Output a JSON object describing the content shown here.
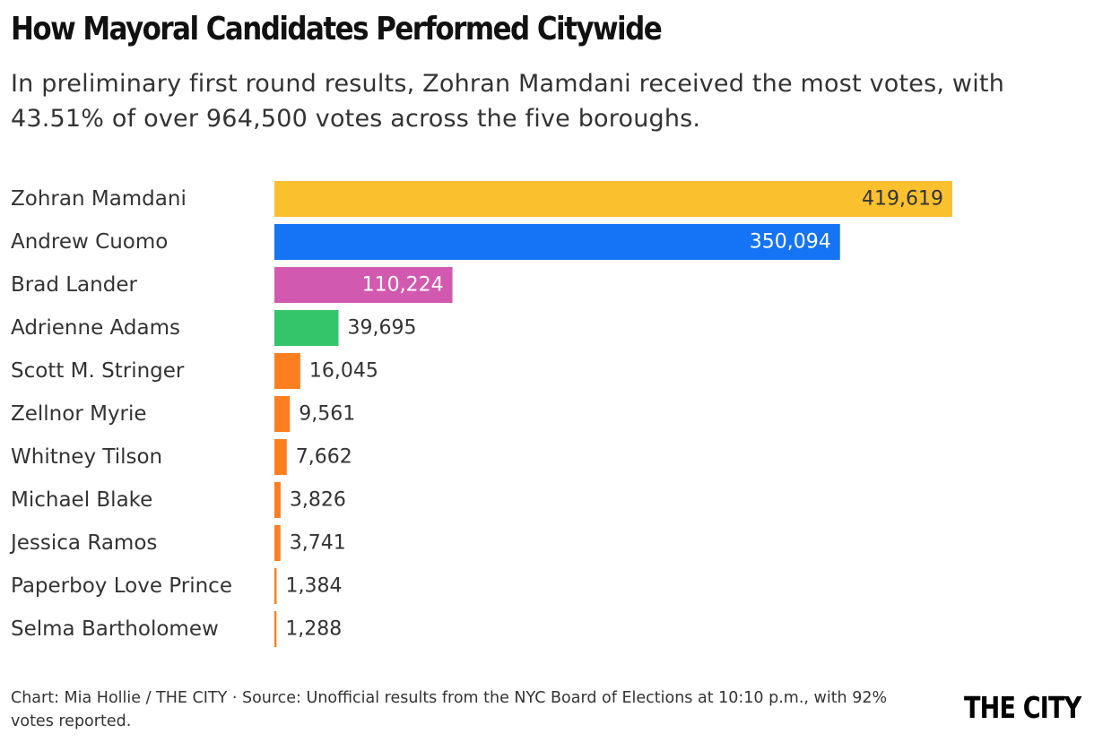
{
  "title": "How Mayoral Candidates Performed Citywide",
  "subtitle": "In preliminary first round results, Zohran Mamdani received the most votes, with 43.51% of over 964,500 votes across the five boroughs.",
  "footer": "Chart: Mia Hollie / THE CITY · Source: Unofficial results from the NYC Board of Elections at 10:10 p.m., with 92% votes reported.",
  "logo": "THE CITY",
  "chart_data": {
    "type": "bar",
    "orientation": "horizontal",
    "categories": [
      "Zohran Mamdani",
      "Andrew Cuomo",
      "Brad Lander",
      "Adrienne Adams",
      "Scott M. Stringer",
      "Zellnor Myrie",
      "Whitney Tilson",
      "Michael Blake",
      "Jessica Ramos",
      "Paperboy Love Prince",
      "Selma Bartholomew"
    ],
    "values": [
      419619,
      350094,
      110224,
      39695,
      16045,
      9561,
      7662,
      3826,
      3741,
      1384,
      1288
    ],
    "labels": [
      "419,619",
      "350,094",
      "110,224",
      "39,695",
      "16,045",
      "9,561",
      "7,662",
      "3,826",
      "3,741",
      "1,384",
      "1,288"
    ],
    "colors": [
      "#fbc02d",
      "#1573f5",
      "#d15ab0",
      "#34c469",
      "#fd7e1f",
      "#fd7e1f",
      "#fd7e1f",
      "#fd7e1f",
      "#fd7e1f",
      "#fd7e1f",
      "#fd7e1f"
    ],
    "label_inside": [
      true,
      true,
      true,
      false,
      false,
      false,
      false,
      false,
      false,
      false,
      false
    ],
    "label_colors": [
      "#333333",
      "#ffffff",
      "#ffffff",
      "#333333",
      "#333333",
      "#333333",
      "#333333",
      "#333333",
      "#333333",
      "#333333",
      "#333333"
    ],
    "xlim": [
      0,
      419619
    ],
    "grid": false,
    "legend": "none"
  }
}
